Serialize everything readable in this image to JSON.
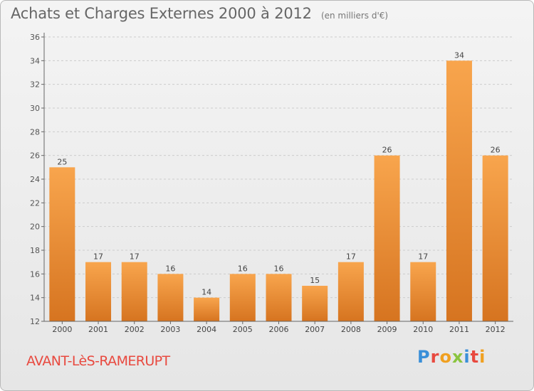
{
  "header": {
    "title": "Achats et Charges Externes 2000 à 2012",
    "subtitle": "(en milliers d'€)"
  },
  "footer": {
    "commune": "AVANT-LèS-RAMERUPT",
    "logo_text": "Proxiti",
    "logo_colors": [
      "#3a8fd8",
      "#e8493f",
      "#f0a020",
      "#8ac43f",
      "#3a8fd8",
      "#e8493f",
      "#f0a020"
    ]
  },
  "colors": {
    "bar_light": "#f8a54d",
    "bar_dark": "#d67420",
    "axis": "#666666",
    "grid": "#cccccc"
  },
  "chart_data": {
    "type": "bar",
    "title": "Achats et Charges Externes 2000 à 2012",
    "subtitle": "(en milliers d'€)",
    "xlabel": "",
    "ylabel": "",
    "categories": [
      "2000",
      "2001",
      "2002",
      "2003",
      "2004",
      "2005",
      "2006",
      "2007",
      "2008",
      "2009",
      "2010",
      "2011",
      "2012"
    ],
    "values": [
      25,
      17,
      17,
      16,
      14,
      16,
      16,
      15,
      17,
      26,
      17,
      34,
      26
    ],
    "ylim": [
      12,
      36
    ],
    "yticks": [
      12,
      14,
      16,
      18,
      20,
      22,
      24,
      26,
      28,
      30,
      32,
      34,
      36
    ],
    "grid": true,
    "data_labels": true
  }
}
